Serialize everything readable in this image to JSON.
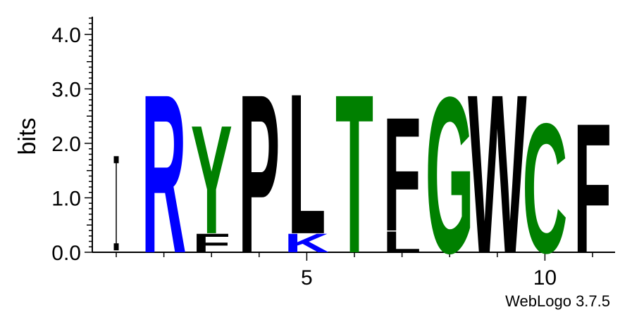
{
  "chart_data": {
    "type": "sequence-logo",
    "ylabel": "bits",
    "ylim": [
      0,
      4.3
    ],
    "yticks": [
      "0.0",
      "1.0",
      "2.0",
      "3.0",
      "4.0"
    ],
    "xticks": [
      {
        "position": 5,
        "label": "5"
      },
      {
        "position": 10,
        "label": "10"
      }
    ],
    "positions": [
      {
        "position": 1,
        "stack": [],
        "error_bar": [
          0.1,
          1.7
        ]
      },
      {
        "position": 2,
        "stack": [
          {
            "letter": "R",
            "bits": 3.0,
            "color": "#0000ff"
          }
        ]
      },
      {
        "position": 3,
        "stack": [
          {
            "letter": "F",
            "bits": 0.35,
            "color": "#000000"
          },
          {
            "letter": "Y",
            "bits": 2.05,
            "color": "#008000"
          }
        ]
      },
      {
        "position": 4,
        "stack": [
          {
            "letter": "P",
            "bits": 3.0,
            "color": "#000000"
          }
        ]
      },
      {
        "position": 5,
        "stack": [
          {
            "letter": "K",
            "bits": 0.35,
            "color": "#0000ff"
          },
          {
            "letter": "L",
            "bits": 2.65,
            "color": "#000000"
          }
        ]
      },
      {
        "position": 6,
        "stack": [
          {
            "letter": "T",
            "bits": 3.0,
            "color": "#008000"
          }
        ]
      },
      {
        "position": 7,
        "stack": [
          {
            "letter": "L",
            "bits": 0.4,
            "color": "#000000"
          },
          {
            "letter": "F",
            "bits": 2.15,
            "color": "#000000"
          }
        ]
      },
      {
        "position": 8,
        "stack": [
          {
            "letter": "G",
            "bits": 2.95,
            "color": "#008000"
          }
        ]
      },
      {
        "position": 9,
        "stack": [
          {
            "letter": "W",
            "bits": 3.0,
            "color": "#000000"
          }
        ]
      },
      {
        "position": 10,
        "stack": [
          {
            "letter": "C",
            "bits": 2.45,
            "color": "#008000"
          }
        ]
      },
      {
        "position": 11,
        "stack": [
          {
            "letter": "F",
            "bits": 2.45,
            "color": "#000000"
          }
        ]
      }
    ]
  },
  "credit": "WebLogo 3.7.5"
}
